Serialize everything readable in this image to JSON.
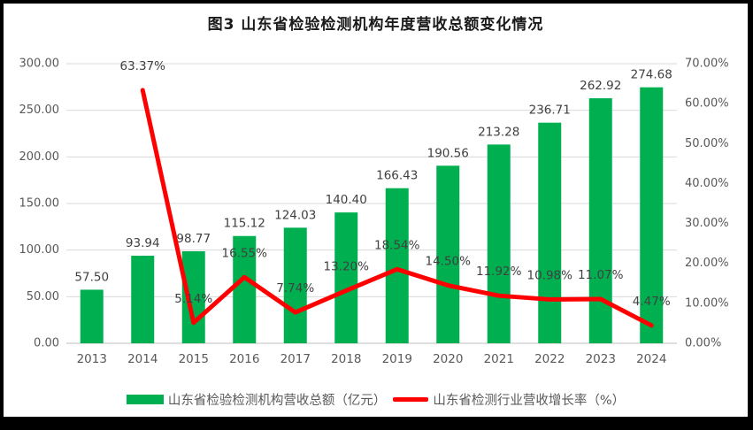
{
  "chart_data": {
    "type": "combo",
    "title": "图3  山东省检验检测机构年度营收总额变化情况",
    "categories": [
      "2013",
      "2014",
      "2015",
      "2016",
      "2017",
      "2018",
      "2019",
      "2020",
      "2021",
      "2022",
      "2023",
      "2024"
    ],
    "series": [
      {
        "name": "山东省检验检测机构营收总额（亿元）",
        "type": "bar",
        "axis": "left",
        "color": "#00B050",
        "values": [
          57.5,
          93.94,
          98.77,
          115.12,
          124.03,
          140.4,
          166.43,
          190.56,
          213.28,
          236.71,
          262.92,
          274.68
        ],
        "labels": [
          "57.50",
          "93.94",
          "98.77",
          "115.12",
          "124.03",
          "140.40",
          "166.43",
          "190.56",
          "213.28",
          "236.71",
          "262.92",
          "274.68"
        ]
      },
      {
        "name": "山东省检测行业营收增长率（%）",
        "type": "line",
        "axis": "right",
        "color": "#FF0000",
        "values": [
          null,
          63.37,
          5.14,
          16.55,
          7.74,
          13.2,
          18.54,
          14.5,
          11.92,
          10.98,
          11.07,
          4.47
        ],
        "labels": [
          "",
          "63.37%",
          "5.14%",
          "16.55%",
          "7.74%",
          "13.20%",
          "18.54%",
          "14.50%",
          "11.92%",
          "10.98%",
          "11.07%",
          "4.47%"
        ]
      }
    ],
    "left_axis": {
      "min": 0,
      "max": 300,
      "step": 50,
      "tick_labels": [
        "0.00",
        "50.00",
        "100.00",
        "150.00",
        "200.00",
        "250.00",
        "300.00"
      ]
    },
    "right_axis": {
      "min": 0,
      "max": 70,
      "step": 10,
      "tick_labels": [
        "0.00%",
        "10.00%",
        "20.00%",
        "30.00%",
        "40.00%",
        "50.00%",
        "60.00%",
        "70.00%"
      ]
    },
    "grid": true,
    "legend_position": "bottom",
    "colors": {
      "background": "#ffffff",
      "frame": "#000000",
      "gridline": "#D9D9D9",
      "baseline": "#BFBFBF",
      "axis_text": "#595959",
      "data_label": "#404040",
      "title_text": "#1a1a1a"
    }
  }
}
